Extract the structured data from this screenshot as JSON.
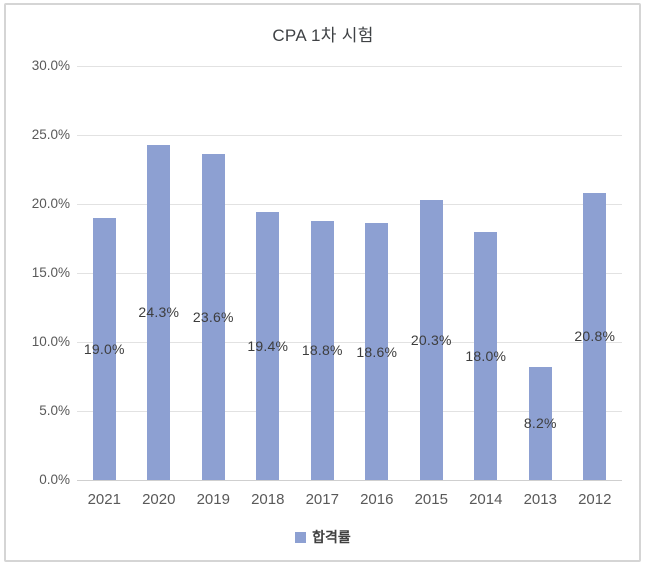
{
  "chart_data": {
    "type": "bar",
    "title": "CPA 1차 시험",
    "categories": [
      "2021",
      "2020",
      "2019",
      "2018",
      "2017",
      "2016",
      "2015",
      "2014",
      "2013",
      "2012"
    ],
    "values": [
      19.0,
      24.3,
      23.6,
      19.4,
      18.8,
      18.6,
      20.3,
      18.0,
      8.2,
      20.8
    ],
    "value_labels": [
      "19.0%",
      "24.3%",
      "23.6%",
      "19.4%",
      "18.8%",
      "18.6%",
      "20.3%",
      "18.0%",
      "8.2%",
      "20.8%"
    ],
    "xlabel": "",
    "ylabel": "",
    "ylim": [
      0,
      30
    ],
    "ytick_step": 5,
    "ytick_labels": [
      "0.0%",
      "5.0%",
      "10.0%",
      "15.0%",
      "20.0%",
      "25.0%",
      "30.0%"
    ],
    "grid": true,
    "legend": {
      "position": "bottom",
      "entries": [
        {
          "label": "합격률",
          "color": "#8da0d2"
        }
      ]
    },
    "bar_color": "#8da0d2",
    "gridline_color": "#e2e2e2",
    "axis_line_color": "#cfcfcf",
    "title_color": "#3f4245",
    "tick_label_color": "#595959",
    "data_label_color": "#3d3d3d"
  }
}
